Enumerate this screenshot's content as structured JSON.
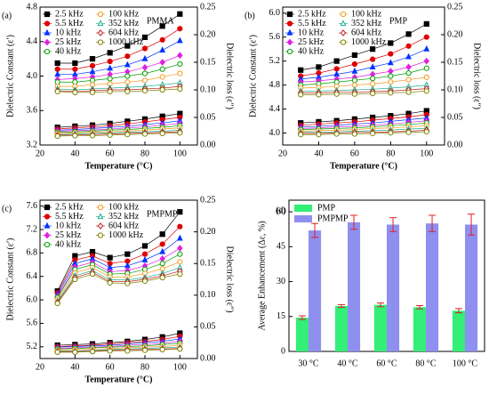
{
  "chart_data": [
    {
      "type": "line",
      "panel_label": "(a)",
      "title": "PMMA",
      "xlabel": "Temperature (°C)",
      "ylabel": "Dielectric Constant (ε′)",
      "y2label": "Dielectric loss (ε″)",
      "x": [
        30,
        40,
        50,
        60,
        70,
        80,
        90,
        100
      ],
      "xlim": [
        20,
        110
      ],
      "xticks": [
        20,
        40,
        60,
        80,
        100
      ],
      "ylim": [
        3.2,
        4.8
      ],
      "yticks": [
        3.2,
        3.6,
        {
          "value": 4,
          "label": "4.0"
        },
        4.4,
        4.8
      ],
      "y2lim": [
        0,
        0.25
      ],
      "y2ticks": [
        {
          "value": 0,
          "label": "0.00"
        },
        {
          "value": 0.05,
          "label": "0.05"
        },
        {
          "value": 0.1,
          "label": "0.10"
        },
        {
          "value": 0.15,
          "label": "0.15"
        },
        {
          "value": 0.2,
          "label": "0.20"
        },
        {
          "value": 0.25,
          "label": "0.25"
        }
      ],
      "series": [
        {
          "name": "2.5 kHz",
          "color": "#000000",
          "marker": "square",
          "filled": true,
          "values": [
            4.15,
            4.15,
            4.2,
            4.27,
            4.35,
            4.45,
            4.58,
            4.72
          ],
          "loss": [
            0.032,
            0.034,
            0.036,
            0.039,
            0.043,
            0.047,
            0.052,
            0.057
          ]
        },
        {
          "name": "5.5 kHz",
          "color": "#e00000",
          "marker": "circle",
          "filled": true,
          "values": [
            4.08,
            4.08,
            4.12,
            4.17,
            4.23,
            4.32,
            4.42,
            4.55
          ],
          "loss": [
            0.029,
            0.031,
            0.033,
            0.035,
            0.038,
            0.042,
            0.046,
            0.05
          ]
        },
        {
          "name": "10 kHz",
          "color": "#0033ff",
          "marker": "triangle",
          "filled": true,
          "values": [
            4.02,
            4.02,
            4.05,
            4.09,
            4.13,
            4.2,
            4.3,
            4.41
          ],
          "loss": [
            0.027,
            0.028,
            0.03,
            0.032,
            0.034,
            0.037,
            0.04,
            0.044
          ]
        },
        {
          "name": "25 kHz",
          "color": "#e020e0",
          "marker": "diamond",
          "filled": true,
          "values": [
            3.96,
            3.97,
            3.99,
            4.02,
            4.05,
            4.1,
            4.16,
            4.24
          ],
          "loss": [
            0.025,
            0.026,
            0.027,
            0.029,
            0.031,
            0.033,
            0.036,
            0.039
          ]
        },
        {
          "name": "40 kHz",
          "color": "#00a000",
          "marker": "circle",
          "filled": false,
          "values": [
            3.93,
            3.93,
            3.95,
            3.97,
            4.0,
            4.03,
            4.08,
            4.14
          ],
          "loss": [
            0.023,
            0.024,
            0.025,
            0.027,
            0.028,
            0.03,
            0.032,
            0.035
          ]
        },
        {
          "name": "100 kHz",
          "color": "#f59a20",
          "marker": "circle",
          "filled": false,
          "values": [
            3.88,
            3.88,
            3.9,
            3.91,
            3.93,
            3.95,
            3.99,
            4.03
          ],
          "loss": [
            0.021,
            0.022,
            0.023,
            0.024,
            0.025,
            0.027,
            0.029,
            0.031
          ]
        },
        {
          "name": "352 kHz",
          "color": "#20b090",
          "marker": "triangle",
          "filled": false,
          "values": [
            3.85,
            3.84,
            3.85,
            3.86,
            3.87,
            3.88,
            3.9,
            3.92
          ],
          "loss": [
            0.019,
            0.02,
            0.021,
            0.022,
            0.023,
            0.024,
            0.025,
            0.027
          ]
        },
        {
          "name": "604 kHz",
          "color": "#c02020",
          "marker": "diamond",
          "filled": false,
          "values": [
            3.83,
            3.82,
            3.83,
            3.84,
            3.84,
            3.85,
            3.86,
            3.88
          ],
          "loss": [
            0.018,
            0.018,
            0.019,
            0.02,
            0.021,
            0.022,
            0.023,
            0.024
          ]
        },
        {
          "name": "1000 kHz",
          "color": "#808000",
          "marker": "circle",
          "filled": false,
          "values": [
            3.82,
            3.81,
            3.81,
            3.82,
            3.82,
            3.83,
            3.84,
            3.85
          ],
          "loss": [
            0.016,
            0.017,
            0.017,
            0.018,
            0.019,
            0.02,
            0.021,
            0.022
          ]
        }
      ]
    },
    {
      "type": "line",
      "panel_label": "(b)",
      "title": "PMP",
      "xlabel": "Temperature (°C)",
      "ylabel": "Dielectric Constant (ε′)",
      "y2label": "Dielectric loss (ε″)",
      "x": [
        30,
        40,
        50,
        60,
        70,
        80,
        90,
        100
      ],
      "xlim": [
        20,
        110
      ],
      "xticks": [
        20,
        40,
        60,
        80,
        100
      ],
      "ylim": [
        3.8,
        6.1
      ],
      "yticks": [
        {
          "value": 4,
          "label": "4.0"
        },
        4.4,
        4.8,
        5.2,
        5.6,
        {
          "value": 6,
          "label": "6.0"
        }
      ],
      "y2lim": [
        0,
        0.25
      ],
      "y2ticks": [
        {
          "value": 0,
          "label": "0.00"
        },
        {
          "value": 0.05,
          "label": "0.05"
        },
        {
          "value": 0.1,
          "label": "0.10"
        },
        {
          "value": 0.15,
          "label": "0.15"
        },
        {
          "value": 0.2,
          "label": "0.20"
        },
        {
          "value": 0.25,
          "label": "0.25"
        }
      ],
      "series": [
        {
          "name": "2.5 kHz",
          "color": "#000000",
          "marker": "square",
          "filled": true,
          "values": [
            5.05,
            5.1,
            5.2,
            5.3,
            5.4,
            5.5,
            5.65,
            5.82
          ],
          "loss": [
            0.04,
            0.042,
            0.044,
            0.047,
            0.05,
            0.053,
            0.057,
            0.062
          ]
        },
        {
          "name": "5.5 kHz",
          "color": "#e00000",
          "marker": "circle",
          "filled": true,
          "values": [
            4.95,
            5.0,
            5.07,
            5.15,
            5.23,
            5.32,
            5.45,
            5.6
          ],
          "loss": [
            0.036,
            0.038,
            0.04,
            0.042,
            0.045,
            0.048,
            0.051,
            0.055
          ]
        },
        {
          "name": "10 kHz",
          "color": "#0033ff",
          "marker": "triangle",
          "filled": true,
          "values": [
            4.9,
            4.93,
            4.98,
            5.03,
            5.1,
            5.17,
            5.27,
            5.4
          ],
          "loss": [
            0.033,
            0.034,
            0.036,
            0.038,
            0.04,
            0.043,
            0.046,
            0.049
          ]
        },
        {
          "name": "25 kHz",
          "color": "#e020e0",
          "marker": "diamond",
          "filled": true,
          "values": [
            4.85,
            4.87,
            4.9,
            4.93,
            4.98,
            5.03,
            5.1,
            5.2
          ],
          "loss": [
            0.03,
            0.031,
            0.033,
            0.034,
            0.036,
            0.038,
            0.041,
            0.044
          ]
        },
        {
          "name": "40 kHz",
          "color": "#00a000",
          "marker": "circle",
          "filled": false,
          "values": [
            4.8,
            4.82,
            4.85,
            4.88,
            4.91,
            4.95,
            5.0,
            5.08
          ],
          "loss": [
            0.028,
            0.029,
            0.03,
            0.031,
            0.033,
            0.035,
            0.037,
            0.04
          ]
        },
        {
          "name": "100 kHz",
          "color": "#f59a20",
          "marker": "circle",
          "filled": false,
          "values": [
            4.75,
            4.76,
            4.78,
            4.8,
            4.82,
            4.85,
            4.89,
            4.93
          ],
          "loss": [
            0.025,
            0.026,
            0.027,
            0.028,
            0.03,
            0.031,
            0.033,
            0.035
          ]
        },
        {
          "name": "352 kHz",
          "color": "#20b090",
          "marker": "triangle",
          "filled": false,
          "values": [
            4.7,
            4.7,
            4.71,
            4.72,
            4.73,
            4.75,
            4.77,
            4.8
          ],
          "loss": [
            0.023,
            0.023,
            0.024,
            0.025,
            0.026,
            0.027,
            0.029,
            0.03
          ]
        },
        {
          "name": "604 kHz",
          "color": "#c02020",
          "marker": "diamond",
          "filled": false,
          "values": [
            4.67,
            4.67,
            4.68,
            4.68,
            4.69,
            4.7,
            4.72,
            4.74
          ],
          "loss": [
            0.021,
            0.021,
            0.022,
            0.023,
            0.023,
            0.024,
            0.025,
            0.027
          ]
        },
        {
          "name": "1000 kHz",
          "color": "#808000",
          "marker": "circle",
          "filled": false,
          "values": [
            4.64,
            4.64,
            4.65,
            4.65,
            4.66,
            4.67,
            4.68,
            4.7
          ],
          "loss": [
            0.019,
            0.019,
            0.02,
            0.02,
            0.021,
            0.022,
            0.023,
            0.024
          ]
        }
      ]
    },
    {
      "type": "line",
      "panel_label": "(c)",
      "title": "PMPMP",
      "xlabel": "Temperature (°C)",
      "ylabel": "Dielectric Constant (ε′)",
      "y2label": "Dielectric loss (ε″)",
      "x": [
        30,
        40,
        50,
        60,
        70,
        80,
        90,
        100
      ],
      "xlim": [
        20,
        110
      ],
      "xticks": [
        20,
        40,
        60,
        80,
        100
      ],
      "ylim": [
        5.0,
        7.7
      ],
      "yticks": [
        5.2,
        5.6,
        {
          "value": 6,
          "label": "6.0"
        },
        6.4,
        6.8,
        7.2,
        7.6
      ],
      "y2lim": [
        0,
        0.25
      ],
      "y2ticks": [
        {
          "value": 0,
          "label": "0.00"
        },
        {
          "value": 0.05,
          "label": "0.05"
        },
        {
          "value": 0.1,
          "label": "0.10"
        },
        {
          "value": 0.15,
          "label": "0.15"
        },
        {
          "value": 0.2,
          "label": "0.20"
        },
        {
          "value": 0.25,
          "label": "0.25"
        }
      ],
      "series": [
        {
          "name": "2.5 kHz",
          "color": "#000000",
          "marker": "square",
          "filled": true,
          "values": [
            6.15,
            6.75,
            6.82,
            6.72,
            6.78,
            6.92,
            7.12,
            7.5
          ],
          "loss": [
            0.021,
            0.022,
            0.023,
            0.025,
            0.027,
            0.03,
            0.034,
            0.04
          ]
        },
        {
          "name": "5.5 kHz",
          "color": "#e00000",
          "marker": "circle",
          "filled": true,
          "values": [
            6.12,
            6.68,
            6.75,
            6.62,
            6.66,
            6.78,
            6.95,
            7.25
          ],
          "loss": [
            0.019,
            0.02,
            0.021,
            0.023,
            0.025,
            0.027,
            0.03,
            0.035
          ]
        },
        {
          "name": "10 kHz",
          "color": "#0033ff",
          "marker": "triangle",
          "filled": true,
          "values": [
            6.09,
            6.62,
            6.7,
            6.55,
            6.58,
            6.68,
            6.82,
            7.05
          ],
          "loss": [
            0.018,
            0.019,
            0.02,
            0.021,
            0.023,
            0.025,
            0.027,
            0.031
          ]
        },
        {
          "name": "25 kHz",
          "color": "#e020e0",
          "marker": "diamond",
          "filled": true,
          "values": [
            6.06,
            6.56,
            6.64,
            6.48,
            6.5,
            6.58,
            6.7,
            6.88
          ],
          "loss": [
            0.016,
            0.017,
            0.018,
            0.019,
            0.021,
            0.022,
            0.024,
            0.027
          ]
        },
        {
          "name": "40 kHz",
          "color": "#00a000",
          "marker": "circle",
          "filled": false,
          "values": [
            6.04,
            6.52,
            6.6,
            6.44,
            6.45,
            6.52,
            6.62,
            6.78
          ],
          "loss": [
            0.015,
            0.016,
            0.017,
            0.018,
            0.019,
            0.02,
            0.022,
            0.024
          ]
        },
        {
          "name": "100 kHz",
          "color": "#f59a20",
          "marker": "circle",
          "filled": false,
          "values": [
            6.01,
            6.46,
            6.55,
            6.39,
            6.39,
            6.45,
            6.53,
            6.65
          ],
          "loss": [
            0.013,
            0.014,
            0.015,
            0.016,
            0.017,
            0.018,
            0.019,
            0.021
          ]
        },
        {
          "name": "352 kHz",
          "color": "#20b090",
          "marker": "triangle",
          "filled": false,
          "values": [
            5.98,
            6.41,
            6.5,
            6.34,
            6.34,
            6.38,
            6.45,
            6.55
          ],
          "loss": [
            0.012,
            0.012,
            0.013,
            0.014,
            0.015,
            0.016,
            0.017,
            0.018
          ]
        },
        {
          "name": "604 kHz",
          "color": "#c02020",
          "marker": "diamond",
          "filled": false,
          "values": [
            5.96,
            6.38,
            6.47,
            6.31,
            6.31,
            6.35,
            6.41,
            6.49
          ],
          "loss": [
            0.011,
            0.011,
            0.012,
            0.013,
            0.014,
            0.014,
            0.015,
            0.016
          ]
        },
        {
          "name": "1000 kHz",
          "color": "#808000",
          "marker": "circle",
          "filled": false,
          "values": [
            5.94,
            6.35,
            6.44,
            6.29,
            6.28,
            6.32,
            6.38,
            6.44
          ],
          "loss": [
            0.01,
            0.01,
            0.011,
            0.012,
            0.012,
            0.013,
            0.014,
            0.015
          ]
        }
      ]
    },
    {
      "type": "bar",
      "panel_label": "(d)",
      "ylabel": "Average Enhancement (Δε, %)",
      "categories": [
        "30 °C",
        "40 °C",
        "60 °C",
        "80 °C",
        "100 °C"
      ],
      "ylim": [
        0,
        65
      ],
      "yticks": [
        0,
        15,
        30,
        45,
        60
      ],
      "error_color": "#e02020",
      "series": [
        {
          "name": "PMP",
          "color": "#33ee77",
          "values": [
            14.5,
            19.5,
            20,
            19,
            17.5
          ],
          "errors": [
            0.8,
            0.6,
            0.8,
            0.7,
            0.9
          ]
        },
        {
          "name": "PMPMP",
          "color": "#8f8ff0",
          "values": [
            52,
            55.5,
            54.5,
            55,
            54.5
          ],
          "errors": [
            3,
            3,
            3,
            3.5,
            4.5
          ]
        }
      ]
    }
  ]
}
